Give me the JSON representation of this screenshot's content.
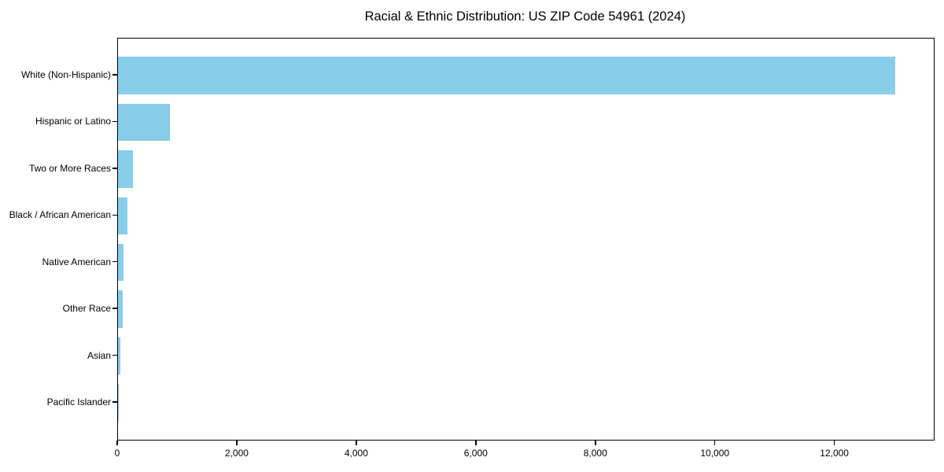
{
  "chart_data": {
    "type": "bar",
    "orientation": "horizontal",
    "title": "Racial & Ethnic Distribution: US ZIP Code 54961 (2024)",
    "categories": [
      "White (Non-Hispanic)",
      "Hispanic or Latino",
      "Two or More Races",
      "Black / African American",
      "Native American",
      "Other Race",
      "Asian",
      "Pacific Islander"
    ],
    "values": [
      13000,
      870,
      255,
      160,
      92,
      78,
      42,
      5
    ],
    "xlabel": "",
    "ylabel": "",
    "xlim": [
      0,
      13650
    ],
    "x_tick_values": [
      0,
      2000,
      4000,
      6000,
      8000,
      10000,
      12000
    ],
    "x_tick_labels": [
      "0",
      "2,000",
      "4,000",
      "6,000",
      "8,000",
      "10,000",
      "12,000"
    ],
    "bar_color": "#87CEEB",
    "background_color": "#FFFFFF",
    "axis_color": "#000000",
    "grid": false,
    "legend_position": "none"
  }
}
